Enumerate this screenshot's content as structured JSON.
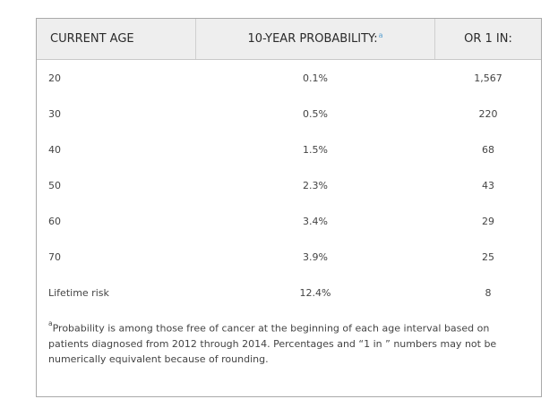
{
  "table": {
    "headers": {
      "age": "CURRENT AGE",
      "probability": "10-YEAR PROBABILITY:",
      "probability_marker": "a",
      "one_in": "OR 1 IN:"
    },
    "rows": [
      {
        "age": "20",
        "probability": "0.1%",
        "one_in": "1,567"
      },
      {
        "age": "30",
        "probability": "0.5%",
        "one_in": "220"
      },
      {
        "age": "40",
        "probability": "1.5%",
        "one_in": "68"
      },
      {
        "age": "50",
        "probability": "2.3%",
        "one_in": "43"
      },
      {
        "age": "60",
        "probability": "3.4%",
        "one_in": "29"
      },
      {
        "age": "70",
        "probability": "3.9%",
        "one_in": "25"
      },
      {
        "age": "Lifetime risk",
        "probability": "12.4%",
        "one_in": "8"
      }
    ]
  },
  "footnote": {
    "marker": "a",
    "text": "Probability is among those free of cancer at the beginning of each age interval based on patients diagnosed from 2012 through 2014. Percentages and “1 in ” numbers may not be numerically equivalent because of rounding."
  }
}
